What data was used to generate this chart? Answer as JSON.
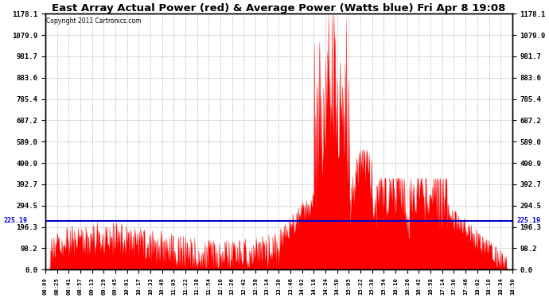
{
  "title": "East Array Actual Power (red) & Average Power (Watts blue) Fri Apr 8 19:08",
  "copyright": "Copyright 2011 Cartronics.com",
  "avg_power": 225.19,
  "y_max": 1178.1,
  "y_min": 0.0,
  "y_ticks": [
    0.0,
    98.2,
    196.3,
    294.5,
    392.7,
    490.9,
    589.0,
    687.2,
    785.4,
    883.6,
    981.7,
    1079.9,
    1178.1
  ],
  "avg_label": "225.19",
  "background_color": "#ffffff",
  "plot_bg": "#ffffff",
  "grid_color": "#bbbbbb",
  "red_color": "#ff0000",
  "blue_color": "#0000cc",
  "title_fontsize": 9.5,
  "x_labels": [
    "08:09",
    "08:25",
    "08:41",
    "08:57",
    "09:13",
    "09:29",
    "09:45",
    "10:01",
    "10:17",
    "10:33",
    "10:49",
    "11:05",
    "11:22",
    "11:38",
    "11:54",
    "12:10",
    "12:26",
    "12:42",
    "12:58",
    "13:14",
    "13:30",
    "13:46",
    "14:02",
    "14:18",
    "14:34",
    "14:50",
    "15:05",
    "15:22",
    "15:38",
    "15:54",
    "16:10",
    "16:26",
    "16:42",
    "16:58",
    "17:14",
    "17:30",
    "17:46",
    "18:02",
    "18:18",
    "18:34",
    "18:50"
  ]
}
